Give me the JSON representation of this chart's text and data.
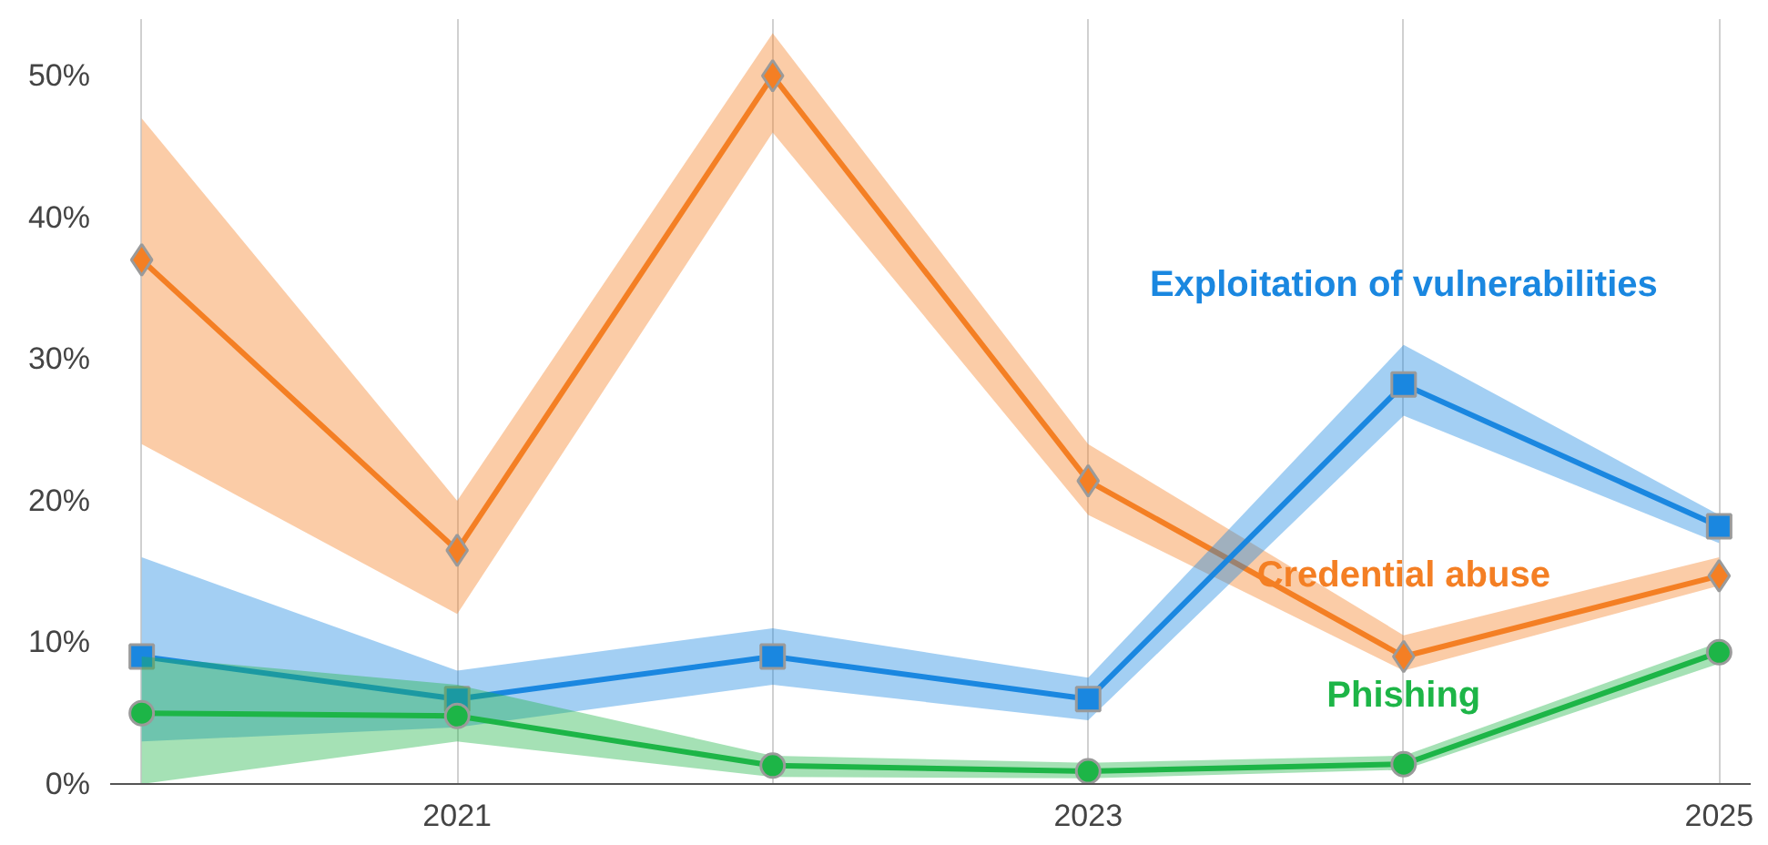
{
  "chart_data": {
    "type": "line",
    "x": [
      2020,
      2021,
      2022,
      2023,
      2024,
      2025
    ],
    "xlim": [
      2019.9,
      2025.1
    ],
    "xticks": [
      {
        "value": 2020,
        "label": null
      },
      2021,
      {
        "value": 2022,
        "label": null
      },
      2023,
      {
        "value": 2024,
        "label": null
      },
      2025
    ],
    "ylim": [
      0,
      54
    ],
    "yticks": [
      {
        "value": 0,
        "label": "0%"
      },
      {
        "value": 10,
        "label": "10%"
      },
      {
        "value": 20,
        "label": "20%"
      },
      {
        "value": 30,
        "label": "30%"
      },
      {
        "value": 40,
        "label": "40%"
      },
      {
        "value": 50,
        "label": "50%"
      }
    ],
    "grid": "x",
    "series": [
      {
        "name": "Credential abuse",
        "color": "#f47f24",
        "marker": "diamond",
        "values": [
          37,
          16.5,
          50,
          21.4,
          9,
          14.7
        ],
        "lower": [
          24,
          12,
          46,
          19,
          8,
          14
        ],
        "upper": [
          47,
          20,
          53,
          24,
          10.5,
          16
        ]
      },
      {
        "name": "Exploitation of vulnerabilities",
        "color": "#1a87e0",
        "marker": "square",
        "values": [
          9,
          6,
          9,
          6,
          28.2,
          18.2
        ],
        "lower": [
          3,
          4,
          7,
          4.5,
          26,
          17
        ],
        "upper": [
          16,
          8,
          11,
          7.5,
          31,
          19
        ]
      },
      {
        "name": "Phishing",
        "color": "#1db547",
        "marker": "circle",
        "values": [
          5,
          4.8,
          1.3,
          0.9,
          1.4,
          9.3
        ],
        "lower": [
          0,
          3,
          0.5,
          0.4,
          1,
          8.5
        ],
        "upper": [
          9,
          7,
          2,
          1.5,
          2,
          10
        ]
      }
    ]
  }
}
